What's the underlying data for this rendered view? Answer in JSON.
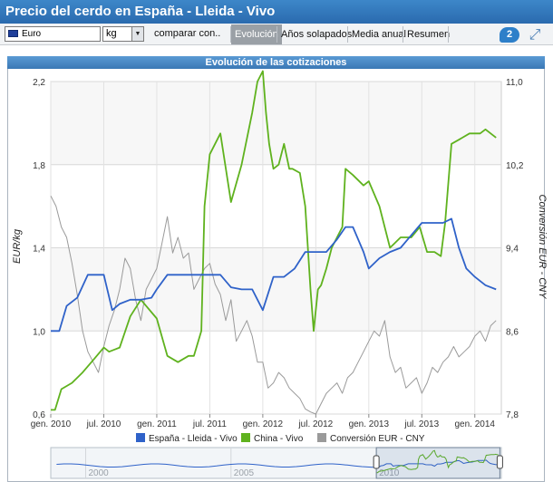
{
  "header": {
    "title": "Precio del cerdo en España - Lleida - Vivo"
  },
  "toolbar": {
    "currency": "Euro",
    "unit": "kg",
    "compare_label": "comparar con..",
    "tabs": [
      {
        "label": "Evolución",
        "active": true
      },
      {
        "label": "Años solapados",
        "active": false
      },
      {
        "label": "Media anual",
        "active": false
      },
      {
        "label": "Resumen",
        "active": false
      }
    ],
    "help_badge": "2"
  },
  "chart_data": {
    "type": "line",
    "title": "Evolución de las cotizaciones",
    "ylabel": "EUR/kg",
    "y2label": "Conversión EUR - CNY",
    "x_range": [
      2010.0,
      2014.25
    ],
    "ylim": [
      0.6,
      2.2
    ],
    "y2lim": [
      7.8,
      11.0
    ],
    "y_ticks": [
      "0,6",
      "1,0",
      "1,4",
      "1,8",
      "2,2"
    ],
    "y2_ticks": [
      "7,8",
      "8,6",
      "9,4",
      "10,2",
      "11,0"
    ],
    "x_ticks": [
      {
        "pos": 2010.0,
        "label": "gen. 2010"
      },
      {
        "pos": 2010.5,
        "label": "jul. 2010"
      },
      {
        "pos": 2011.0,
        "label": "gen. 2011"
      },
      {
        "pos": 2011.5,
        "label": "jul. 2011"
      },
      {
        "pos": 2012.0,
        "label": "gen. 2012"
      },
      {
        "pos": 2012.5,
        "label": "jul. 2012"
      },
      {
        "pos": 2013.0,
        "label": "gen. 2013"
      },
      {
        "pos": 2013.5,
        "label": "jul. 2013"
      },
      {
        "pos": 2014.0,
        "label": "gen. 2014"
      }
    ],
    "grid": true,
    "legend_position": "bottom",
    "series": [
      {
        "name": "España - Lleida - Vivo",
        "color": "#2f62c9",
        "axis": "left",
        "x": [
          2010.0,
          2010.08,
          2010.15,
          2010.25,
          2010.35,
          2010.42,
          2010.5,
          2010.58,
          2010.65,
          2010.75,
          2010.85,
          2010.95,
          2011.0,
          2011.1,
          2011.2,
          2011.35,
          2011.5,
          2011.6,
          2011.7,
          2011.8,
          2011.9,
          2012.0,
          2012.1,
          2012.2,
          2012.3,
          2012.4,
          2012.5,
          2012.6,
          2012.7,
          2012.78,
          2012.85,
          2012.95,
          2013.0,
          2013.1,
          2013.2,
          2013.3,
          2013.4,
          2013.5,
          2013.6,
          2013.7,
          2013.78,
          2013.85,
          2013.92,
          2014.0,
          2014.1,
          2014.2
        ],
        "y": [
          1.0,
          1.0,
          1.12,
          1.16,
          1.27,
          1.27,
          1.27,
          1.1,
          1.13,
          1.15,
          1.15,
          1.16,
          1.2,
          1.27,
          1.27,
          1.27,
          1.27,
          1.27,
          1.21,
          1.2,
          1.2,
          1.1,
          1.26,
          1.26,
          1.3,
          1.38,
          1.38,
          1.38,
          1.44,
          1.5,
          1.5,
          1.38,
          1.3,
          1.35,
          1.38,
          1.4,
          1.46,
          1.52,
          1.52,
          1.52,
          1.54,
          1.4,
          1.3,
          1.26,
          1.22,
          1.2
        ]
      },
      {
        "name": "China - Vivo",
        "color": "#5fb21e",
        "axis": "left",
        "x": [
          2010.0,
          2010.04,
          2010.1,
          2010.2,
          2010.3,
          2010.4,
          2010.5,
          2010.55,
          2010.65,
          2010.75,
          2010.85,
          2011.0,
          2011.1,
          2011.2,
          2011.3,
          2011.35,
          2011.42,
          2011.45,
          2011.5,
          2011.6,
          2011.7,
          2011.8,
          2011.9,
          2011.95,
          2012.0,
          2012.03,
          2012.06,
          2012.1,
          2012.15,
          2012.2,
          2012.25,
          2012.28,
          2012.35,
          2012.4,
          2012.45,
          2012.48,
          2012.52,
          2012.55,
          2012.6,
          2012.65,
          2012.75,
          2012.78,
          2012.85,
          2012.95,
          2013.0,
          2013.1,
          2013.2,
          2013.3,
          2013.4,
          2013.48,
          2013.55,
          2013.62,
          2013.68,
          2013.72,
          2013.78,
          2013.85,
          2013.95,
          2014.05,
          2014.1,
          2014.2
        ],
        "y": [
          0.62,
          0.62,
          0.72,
          0.75,
          0.8,
          0.86,
          0.92,
          0.9,
          0.92,
          1.07,
          1.15,
          1.06,
          0.88,
          0.85,
          0.88,
          0.88,
          1.0,
          1.6,
          1.85,
          1.95,
          1.62,
          1.8,
          2.05,
          2.2,
          2.25,
          2.05,
          1.9,
          1.78,
          1.8,
          1.9,
          1.78,
          1.78,
          1.76,
          1.6,
          1.2,
          1.0,
          1.2,
          1.22,
          1.3,
          1.4,
          1.5,
          1.78,
          1.75,
          1.7,
          1.72,
          1.6,
          1.4,
          1.45,
          1.45,
          1.5,
          1.38,
          1.38,
          1.36,
          1.52,
          1.9,
          1.92,
          1.95,
          1.95,
          1.97,
          1.93
        ]
      },
      {
        "name": "Conversión EUR - CNY",
        "color": "#9a9a9a",
        "axis": "right",
        "x": [
          2010.0,
          2010.05,
          2010.1,
          2010.15,
          2010.2,
          2010.25,
          2010.3,
          2010.35,
          2010.4,
          2010.45,
          2010.5,
          2010.55,
          2010.6,
          2010.65,
          2010.7,
          2010.75,
          2010.8,
          2010.85,
          2010.9,
          2010.95,
          2011.0,
          2011.05,
          2011.1,
          2011.15,
          2011.2,
          2011.25,
          2011.3,
          2011.35,
          2011.4,
          2011.45,
          2011.5,
          2011.55,
          2011.6,
          2011.65,
          2011.7,
          2011.75,
          2011.8,
          2011.85,
          2011.9,
          2011.95,
          2012.0,
          2012.05,
          2012.1,
          2012.15,
          2012.2,
          2012.25,
          2012.3,
          2012.35,
          2012.4,
          2012.45,
          2012.5,
          2012.55,
          2012.6,
          2012.65,
          2012.7,
          2012.75,
          2012.8,
          2012.85,
          2012.9,
          2012.95,
          2013.0,
          2013.05,
          2013.1,
          2013.15,
          2013.2,
          2013.25,
          2013.3,
          2013.35,
          2013.4,
          2013.45,
          2013.5,
          2013.55,
          2013.6,
          2013.65,
          2013.7,
          2013.75,
          2013.8,
          2013.85,
          2013.9,
          2013.95,
          2014.0,
          2014.05,
          2014.1,
          2014.15,
          2014.2
        ],
        "y": [
          9.9,
          9.8,
          9.6,
          9.5,
          9.25,
          8.95,
          8.6,
          8.4,
          8.3,
          8.2,
          8.45,
          8.65,
          8.8,
          9.0,
          9.3,
          9.2,
          8.9,
          8.7,
          9.0,
          9.1,
          9.2,
          9.45,
          9.7,
          9.35,
          9.5,
          9.3,
          9.35,
          9.0,
          9.1,
          9.2,
          9.25,
          9.05,
          8.95,
          8.7,
          8.9,
          8.5,
          8.6,
          8.7,
          8.55,
          8.3,
          8.3,
          8.05,
          8.1,
          8.2,
          8.15,
          8.05,
          8.0,
          7.95,
          7.85,
          7.82,
          7.8,
          7.9,
          8.0,
          8.05,
          8.1,
          8.0,
          8.15,
          8.2,
          8.3,
          8.4,
          8.5,
          8.6,
          8.55,
          8.7,
          8.35,
          8.2,
          8.25,
          8.05,
          8.1,
          8.15,
          8.0,
          8.1,
          8.25,
          8.2,
          8.3,
          8.35,
          8.45,
          8.35,
          8.4,
          8.45,
          8.55,
          8.6,
          8.5,
          8.65,
          8.7
        ]
      }
    ],
    "navigator": {
      "tick_labels": [
        "2000",
        "2005",
        "2010"
      ]
    }
  }
}
